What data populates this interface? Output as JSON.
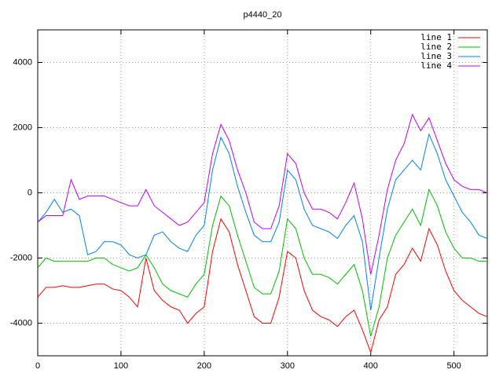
{
  "chart_data": {
    "type": "line",
    "title": "p4440_20",
    "x": [
      0,
      10,
      20,
      30,
      40,
      50,
      60,
      70,
      80,
      90,
      100,
      110,
      120,
      130,
      140,
      150,
      160,
      170,
      180,
      190,
      200,
      210,
      220,
      230,
      240,
      250,
      260,
      270,
      280,
      290,
      300,
      310,
      320,
      330,
      340,
      350,
      360,
      370,
      380,
      390,
      400,
      410,
      420,
      430,
      440,
      450,
      460,
      470,
      480,
      490,
      500,
      510,
      520,
      530,
      540
    ],
    "series": [
      {
        "name": "line 1",
        "color": "#ff0000",
        "values": [
          -3200,
          -2900,
          -2900,
          -2850,
          -2900,
          -2900,
          -2850,
          -2800,
          -2800,
          -2950,
          -3000,
          -3200,
          -3500,
          -2000,
          -3000,
          -3300,
          -3500,
          -3600,
          -4000,
          -3700,
          -3500,
          -1800,
          -800,
          -1200,
          -2200,
          -3000,
          -3800,
          -4000,
          -4000,
          -3200,
          -1800,
          -2000,
          -3000,
          -3600,
          -3800,
          -3900,
          -4100,
          -3800,
          -3600,
          -4200,
          -4900,
          -3900,
          -3500,
          -2500,
          -2200,
          -1700,
          -2100,
          -1100,
          -1600,
          -2400,
          -3000,
          -3300,
          -3500,
          -3700,
          -3800
        ]
      },
      {
        "name": "line 2",
        "color": "#00c000",
        "values": [
          -2300,
          -2000,
          -2100,
          -2100,
          -2100,
          -2100,
          -2100,
          -2000,
          -2000,
          -2200,
          -2300,
          -2400,
          -2300,
          -1900,
          -2300,
          -2800,
          -3000,
          -3100,
          -3200,
          -2800,
          -2500,
          -1000,
          -100,
          -400,
          -1300,
          -2100,
          -2900,
          -3100,
          -3100,
          -2400,
          -800,
          -1100,
          -2000,
          -2500,
          -2500,
          -2600,
          -2800,
          -2500,
          -2200,
          -3000,
          -4400,
          -3500,
          -2000,
          -1300,
          -900,
          -500,
          -1000,
          100,
          -400,
          -1200,
          -1700,
          -2000,
          -2000,
          -2100,
          -2100
        ]
      },
      {
        "name": "line 3",
        "color": "#0080ff",
        "values": [
          -900,
          -600,
          -200,
          -600,
          -500,
          -700,
          -1900,
          -1800,
          -1500,
          -1500,
          -1600,
          -1900,
          -2000,
          -1900,
          -1300,
          -1200,
          -1500,
          -1700,
          -1800,
          -1300,
          -1000,
          700,
          1700,
          1200,
          200,
          -600,
          -1300,
          -1500,
          -1500,
          -900,
          700,
          400,
          -500,
          -1000,
          -1100,
          -1200,
          -1400,
          -1000,
          -700,
          -1500,
          -3600,
          -2000,
          -500,
          400,
          700,
          1000,
          700,
          1800,
          1200,
          400,
          -100,
          -600,
          -900,
          -1300,
          -1400
        ]
      },
      {
        "name": "line 4",
        "color": "#c000ff",
        "values": [
          -900,
          -700,
          -700,
          -700,
          400,
          -200,
          -100,
          -100,
          -100,
          -200,
          -300,
          -400,
          -400,
          100,
          -400,
          -600,
          -800,
          -1000,
          -900,
          -600,
          -300,
          1200,
          2100,
          1600,
          700,
          0,
          -900,
          -1100,
          -1100,
          -400,
          1200,
          900,
          0,
          -500,
          -500,
          -600,
          -800,
          -300,
          300,
          -800,
          -2500,
          -1300,
          100,
          1000,
          1500,
          2400,
          1900,
          2300,
          1600,
          900,
          400,
          200,
          100,
          100,
          0
        ]
      }
    ],
    "xlim": [
      0,
      540
    ],
    "ylim": [
      -5000,
      5000
    ],
    "xticks": [
      0,
      100,
      200,
      300,
      400,
      500
    ],
    "yticks": [
      -4000,
      -2000,
      0,
      2000,
      4000
    ],
    "grid": true,
    "legend": "top-right"
  }
}
